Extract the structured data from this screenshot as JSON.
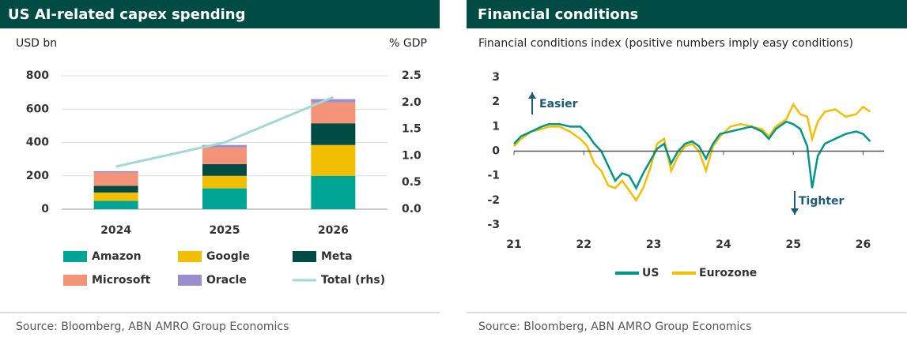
{
  "chart_data": [
    {
      "type": "bar",
      "stacked": true,
      "title": "US AI-related capex spending",
      "y_label": "USD bn",
      "y2_label": "% GDP",
      "categories": [
        "2024",
        "2025",
        "2026"
      ],
      "series": [
        {
          "name": "Amazon",
          "color": "#00a596",
          "values": [
            50,
            125,
            200
          ]
        },
        {
          "name": "Google",
          "color": "#f2bf00",
          "values": [
            50,
            75,
            185
          ]
        },
        {
          "name": "Meta",
          "color": "#004c45",
          "values": [
            40,
            70,
            130
          ]
        },
        {
          "name": "Microsoft",
          "color": "#f39479",
          "values": [
            80,
            100,
            125
          ]
        },
        {
          "name": "Oracle",
          "color": "#9b8fcb",
          "values": [
            8,
            15,
            20
          ]
        },
        {
          "name": "Total (rhs)",
          "color": "#a2d9d3",
          "type": "line",
          "axis": "y2",
          "values": [
            0.8,
            1.25,
            2.1
          ]
        }
      ],
      "ylim": [
        0,
        800
      ],
      "yticks": [
        0,
        200,
        400,
        600,
        800
      ],
      "y2lim": [
        0,
        2.5
      ],
      "y2ticks": [
        {
          "value": 0,
          "label": "0.0"
        },
        0.5,
        {
          "value": 1,
          "label": "1.0"
        },
        1.5,
        {
          "value": 2,
          "label": "2.0"
        },
        2.5
      ],
      "grid": true,
      "source": "Source: Bloomberg, ABN AMRO Group Economics"
    },
    {
      "type": "line",
      "title": "Financial conditions",
      "subtitle": "Financial conditions index (positive numbers imply easy conditions)",
      "x": [
        2021.0,
        2021.1,
        2021.25,
        2021.4,
        2021.5,
        2021.65,
        2021.8,
        2021.95,
        2022.05,
        2022.15,
        2022.25,
        2022.35,
        2022.45,
        2022.55,
        2022.65,
        2022.75,
        2022.85,
        2022.95,
        2023.05,
        2023.15,
        2023.25,
        2023.35,
        2023.45,
        2023.55,
        2023.65,
        2023.75,
        2023.85,
        2023.95,
        2024.1,
        2024.25,
        2024.4,
        2024.55,
        2024.65,
        2024.75,
        2024.9,
        2025.0,
        2025.1,
        2025.2,
        2025.27,
        2025.35,
        2025.45,
        2025.6,
        2025.75,
        2025.9,
        2026.0,
        2026.1
      ],
      "series": [
        {
          "name": "US",
          "color": "#00958a",
          "values": [
            0.3,
            0.6,
            0.8,
            1.0,
            1.1,
            1.1,
            1.0,
            1.0,
            0.7,
            0.3,
            0.0,
            -0.6,
            -1.2,
            -0.9,
            -1.0,
            -1.5,
            -0.9,
            -0.4,
            0.1,
            0.3,
            -0.5,
            0.0,
            0.3,
            0.4,
            0.2,
            -0.3,
            0.3,
            0.7,
            0.8,
            0.9,
            1.0,
            0.8,
            0.5,
            0.9,
            1.2,
            1.1,
            0.9,
            0.2,
            -1.5,
            -0.2,
            0.3,
            0.5,
            0.7,
            0.8,
            0.7,
            0.4
          ]
        },
        {
          "name": "Eurozone",
          "color": "#f2bf00",
          "values": [
            0.2,
            0.5,
            0.8,
            0.9,
            1.0,
            1.0,
            0.8,
            0.5,
            0.2,
            -0.5,
            -0.8,
            -1.4,
            -1.5,
            -1.2,
            -1.6,
            -2.0,
            -1.5,
            -0.7,
            0.3,
            0.5,
            -0.8,
            -0.2,
            0.2,
            0.3,
            0.0,
            -0.8,
            0.2,
            0.6,
            1.0,
            1.1,
            1.0,
            0.9,
            0.6,
            1.0,
            1.3,
            1.9,
            1.5,
            1.4,
            0.5,
            1.2,
            1.6,
            1.7,
            1.4,
            1.5,
            1.8,
            1.6
          ]
        }
      ],
      "xlim": [
        2021,
        2026.3
      ],
      "xticks": [
        {
          "value": 2021,
          "label": "21"
        },
        {
          "value": 2022,
          "label": "22"
        },
        {
          "value": 2023,
          "label": "23"
        },
        {
          "value": 2024,
          "label": "24"
        },
        {
          "value": 2025,
          "label": "25"
        },
        {
          "value": 2026,
          "label": "26"
        }
      ],
      "ylim": [
        -3,
        3
      ],
      "yticks": [
        -3,
        -2,
        -1,
        0,
        1,
        2,
        3
      ],
      "grid": false,
      "zero_line": true,
      "annotations": [
        "Easier",
        "Tighter"
      ],
      "source": "Source: Bloomberg, ABN AMRO Group Economics"
    }
  ]
}
